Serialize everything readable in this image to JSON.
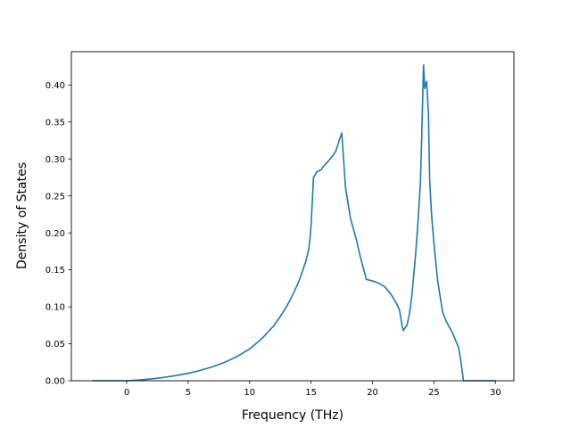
{
  "chart_data": {
    "type": "line",
    "title": "",
    "xlabel": "Frequency (THz)",
    "ylabel": "Density of States",
    "xlim": [
      -4.5,
      31.5
    ],
    "ylim": [
      0.0,
      0.445
    ],
    "xticks": [
      0,
      5,
      10,
      15,
      20,
      25,
      30
    ],
    "xtick_labels": [
      "0",
      "5",
      "10",
      "15",
      "20",
      "25",
      "30"
    ],
    "yticks": [
      0.0,
      0.05,
      0.1,
      0.15,
      0.2,
      0.25,
      0.3,
      0.35,
      0.4
    ],
    "ytick_labels": [
      "0.00",
      "0.05",
      "0.10",
      "0.15",
      "0.20",
      "0.25",
      "0.30",
      "0.35",
      "0.40"
    ],
    "grid": false,
    "legend": "none",
    "series": [
      {
        "color": "#1f77b4",
        "x": [
          -2.8,
          0,
          1,
          2,
          3,
          4,
          5,
          6,
          7,
          8,
          9,
          10,
          11,
          12,
          12.5,
          13,
          13.5,
          14,
          14.3,
          14.6,
          14.8,
          14.9,
          15.0,
          15.2,
          15.5,
          15.8,
          16.0,
          16.3,
          16.7,
          17.0,
          17.2,
          17.3,
          17.5,
          17.8,
          18.2,
          18.7,
          19.0,
          19.5,
          20.0,
          20.5,
          21.0,
          21.5,
          22.0,
          22.2,
          22.4,
          22.5,
          22.8,
          23.0,
          23.2,
          23.5,
          23.7,
          23.9,
          24.0,
          24.15,
          24.25,
          24.4,
          24.55,
          24.65,
          24.8,
          25.0,
          25.3,
          25.7,
          26.0,
          26.5,
          27.0,
          27.2,
          27.4,
          30.0
        ],
        "y": [
          0.0,
          0.0,
          0.001,
          0.0025,
          0.0045,
          0.007,
          0.01,
          0.014,
          0.019,
          0.025,
          0.033,
          0.043,
          0.057,
          0.075,
          0.087,
          0.1,
          0.116,
          0.134,
          0.148,
          0.163,
          0.177,
          0.19,
          0.21,
          0.275,
          0.283,
          0.285,
          0.29,
          0.295,
          0.303,
          0.31,
          0.32,
          0.326,
          0.335,
          0.262,
          0.22,
          0.19,
          0.168,
          0.137,
          0.135,
          0.132,
          0.127,
          0.117,
          0.103,
          0.095,
          0.075,
          0.068,
          0.075,
          0.09,
          0.115,
          0.17,
          0.215,
          0.27,
          0.33,
          0.427,
          0.395,
          0.405,
          0.36,
          0.27,
          0.225,
          0.185,
          0.135,
          0.093,
          0.08,
          0.065,
          0.045,
          0.025,
          0.0,
          0.0
        ]
      }
    ]
  }
}
